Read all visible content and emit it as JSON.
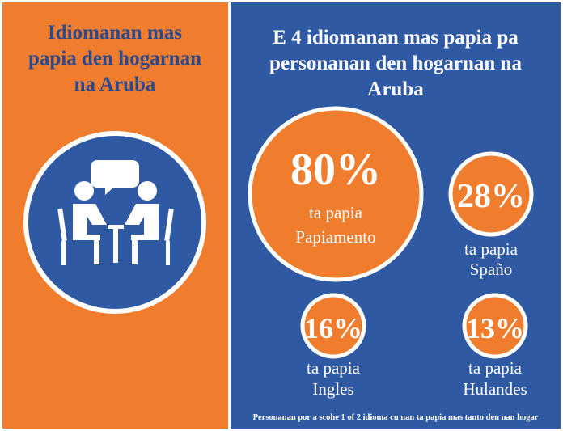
{
  "left": {
    "title": [
      "Idiomanan mas",
      "papia den hogarnan",
      "na Aruba"
    ]
  },
  "right": {
    "title": [
      "E 4 idiomanan mas papia pa",
      "personanan den hogarnan na",
      "Aruba"
    ],
    "stats": [
      {
        "percent": "80%",
        "caption": [
          "ta papia",
          "Papiamento"
        ]
      },
      {
        "percent": "28%",
        "caption": [
          "ta papia",
          "Spaño"
        ]
      },
      {
        "percent": "16%",
        "caption": [
          "ta papia",
          "Ingles"
        ]
      },
      {
        "percent": "13%",
        "caption": [
          "ta papia",
          "Hulandes"
        ]
      }
    ],
    "footnote": "Personanan por a scohe 1 of 2 idioma cu nan ta papia mas tanto den nan hogar"
  }
}
